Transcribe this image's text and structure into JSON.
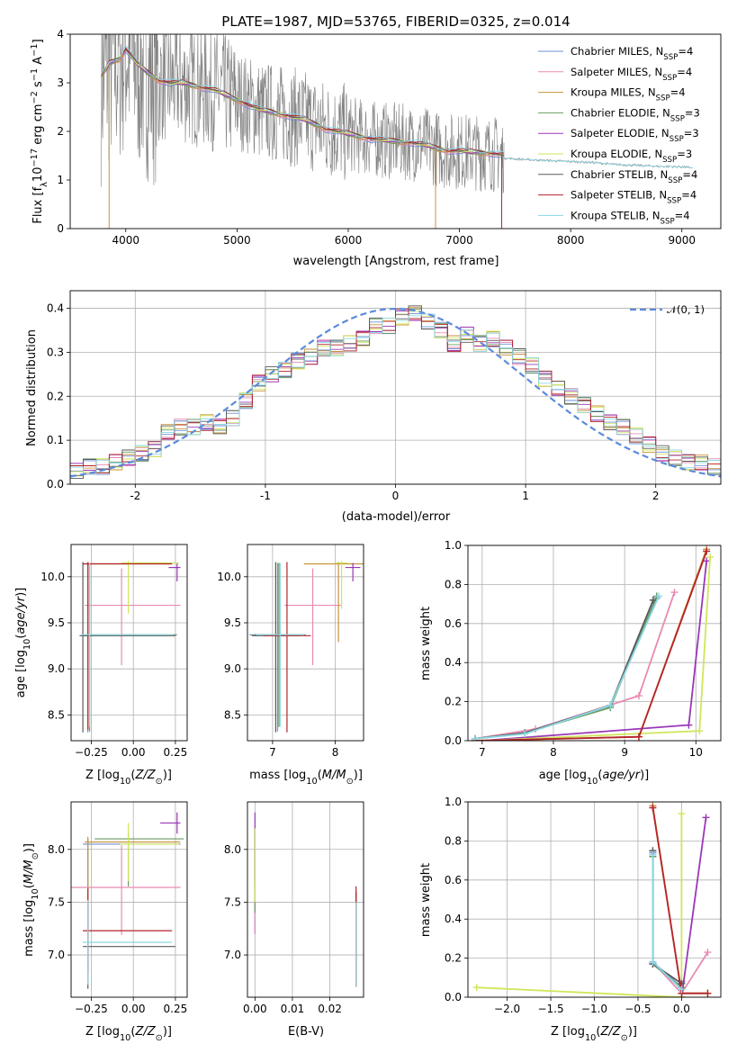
{
  "colors": [
    "#6f8fd6",
    "#e98ab3",
    "#c8923a",
    "#6c9a63",
    "#9a37b7",
    "#cfe65a",
    "#5a5a5a",
    "#b5252b",
    "#8ad7e3"
  ],
  "spectrum_color": "#808080",
  "chart_data": [
    {
      "type": "line",
      "title": "PLATE=1987, MJD=53765, FIBERID=0325, z=0.014",
      "xlabel": "wavelength [Angstrom, rest frame]",
      "ylabel": "Flux [f_λ 10^-17 erg cm^-2 s^-1 A^-1]",
      "xlim": [
        3500,
        9350
      ],
      "ylim": [
        0,
        4
      ],
      "xticks": [
        4000,
        5000,
        6000,
        7000,
        8000,
        9000
      ],
      "yticks": [
        0,
        1,
        2,
        3,
        4
      ],
      "legend_position": "top-right",
      "series": [
        {
          "name": "Chabrier MILES, N_SSP=4"
        },
        {
          "name": "Salpeter MILES, N_SSP=4"
        },
        {
          "name": "Kroupa MILES, N_SSP=4"
        },
        {
          "name": "Chabrier ELODIE, N_SSP=3"
        },
        {
          "name": "Salpeter ELODIE, N_SSP=3"
        },
        {
          "name": "Kroupa ELODIE, N_SSP=3"
        },
        {
          "name": "Chabrier STELIB, N_SSP=4"
        },
        {
          "name": "Salpeter STELIB, N_SSP=4"
        },
        {
          "name": "Kroupa STELIB, N_SSP=4"
        }
      ],
      "model_spectrum": {
        "x": [
          3780,
          3850,
          3950,
          4000,
          4100,
          4200,
          4300,
          4400,
          4500,
          4600,
          4700,
          4800,
          4900,
          5000,
          5100,
          5200,
          5300,
          5400,
          5500,
          5600,
          5700,
          5800,
          5900,
          6000,
          6100,
          6200,
          6300,
          6400,
          6500,
          6600,
          6700,
          6800,
          6900,
          7000,
          7100,
          7200,
          7300,
          7400
        ],
        "y": [
          3.1,
          3.4,
          3.5,
          3.7,
          3.4,
          3.2,
          3.05,
          3.0,
          3.0,
          2.95,
          2.9,
          2.85,
          2.75,
          2.65,
          2.55,
          2.45,
          2.4,
          2.35,
          2.3,
          2.25,
          2.15,
          2.05,
          2.0,
          1.95,
          1.9,
          1.85,
          1.82,
          1.8,
          1.78,
          1.76,
          1.72,
          1.65,
          1.6,
          1.6,
          1.58,
          1.56,
          1.55,
          1.5
        ]
      },
      "observed_spectrum_tail": {
        "x": [
          7400,
          7600,
          7800,
          8000,
          8200,
          8400,
          8600,
          8800,
          9000,
          9100
        ],
        "y": [
          1.45,
          1.42,
          1.4,
          1.38,
          1.36,
          1.32,
          1.3,
          1.28,
          1.27,
          1.25
        ]
      }
    },
    {
      "type": "bar",
      "xlabel": "(data-model)/error",
      "ylabel": "Normed distribution",
      "xlim": [
        -2.5,
        2.5
      ],
      "ylim": [
        0,
        0.44
      ],
      "xticks": [
        -2,
        -1,
        0,
        1,
        2
      ],
      "yticks": [
        0.0,
        0.1,
        0.2,
        0.3,
        0.4
      ],
      "legend": [
        "𝒩(0, 1)"
      ],
      "legend_position": "top-right",
      "reference_curve": "normal pdf, mean 0, sd 1",
      "bins": [
        -2.5,
        -2.4,
        -2.3,
        -2.2,
        -2.1,
        -2.0,
        -1.9,
        -1.8,
        -1.7,
        -1.6,
        -1.5,
        -1.4,
        -1.3,
        -1.2,
        -1.1,
        -1.0,
        -0.9,
        -0.8,
        -0.7,
        -0.6,
        -0.5,
        -0.4,
        -0.3,
        -0.2,
        -0.1,
        0.0,
        0.1,
        0.2,
        0.3,
        0.4,
        0.5,
        0.6,
        0.7,
        0.8,
        0.9,
        1.0,
        1.1,
        1.2,
        1.3,
        1.4,
        1.5,
        1.6,
        1.7,
        1.8,
        1.9,
        2.0,
        2.1,
        2.2,
        2.3,
        2.4,
        2.5
      ],
      "histogram_approx": [
        0.03,
        0.04,
        0.04,
        0.05,
        0.06,
        0.07,
        0.08,
        0.12,
        0.13,
        0.13,
        0.14,
        0.13,
        0.15,
        0.19,
        0.23,
        0.25,
        0.26,
        0.28,
        0.29,
        0.31,
        0.31,
        0.32,
        0.33,
        0.36,
        0.36,
        0.38,
        0.39,
        0.37,
        0.35,
        0.32,
        0.34,
        0.32,
        0.33,
        0.31,
        0.29,
        0.27,
        0.24,
        0.22,
        0.2,
        0.18,
        0.16,
        0.14,
        0.13,
        0.11,
        0.09,
        0.07,
        0.06,
        0.05,
        0.05,
        0.04
      ]
    },
    {
      "type": "scatter",
      "xlabel": "Z [log10(Z/Z_⊙)]",
      "ylabel": "age [log10(age/yr)]",
      "xlim": [
        -0.37,
        0.32
      ],
      "ylim": [
        8.22,
        10.35
      ],
      "xticks": [
        -0.25,
        0.0,
        0.25
      ],
      "xticklabels": [
        "−0.25",
        "0.00",
        "0.25"
      ],
      "yticks": [
        8.5,
        9.0,
        9.5,
        10.0
      ],
      "errorbars": [
        {
          "series": 0,
          "x": -0.27,
          "xerr": 0.03,
          "y": 9.36,
          "yerr": [
            1.05,
            0.8
          ]
        },
        {
          "series": 1,
          "x": -0.07,
          "xerr": [
            0.22,
            0.35
          ],
          "y": 9.69,
          "yerr": [
            0.65,
            0.4
          ]
        },
        {
          "series": 2,
          "x": -0.27,
          "xerr": [
            0.02,
            0.5
          ],
          "y": 10.14,
          "yerr": [
            1.8,
            0.02
          ]
        },
        {
          "series": 3,
          "x": -0.26,
          "xerr": [
            0.03,
            0.52
          ],
          "y": 9.37,
          "yerr": [
            1.05,
            0.78
          ]
        },
        {
          "series": 4,
          "x": 0.26,
          "xerr": [
            0.05,
            0.02
          ],
          "y": 10.1,
          "yerr": [
            0.15,
            0.05
          ]
        },
        {
          "series": 5,
          "x": -0.03,
          "xerr": [
            0.04,
            0.3
          ],
          "y": 10.15,
          "yerr": [
            0.55,
            0.02
          ]
        },
        {
          "series": 6,
          "x": -0.3,
          "xerr": [
            0.02,
            0.55
          ],
          "y": 9.36,
          "yerr": [
            1.05,
            0.8
          ]
        },
        {
          "series": 7,
          "x": -0.27,
          "xerr": [
            0.03,
            0.5
          ],
          "y": 10.14,
          "yerr": [
            1.8,
            0.02
          ]
        },
        {
          "series": 8,
          "x": -0.26,
          "xerr": [
            0.05,
            0.5
          ],
          "y": 9.37,
          "yerr": [
            1.0,
            0.78
          ]
        }
      ]
    },
    {
      "type": "scatter",
      "xlabel": "mass [log10(M/M_⊙)]",
      "ylabel": "",
      "xlim": [
        6.6,
        8.45
      ],
      "ylim": [
        8.22,
        10.35
      ],
      "xticks": [
        7,
        8
      ],
      "yticks": [
        8.5,
        9.0,
        9.5,
        10.0
      ],
      "errorbars": [
        {
          "series": 0,
          "x": 7.08,
          "xerr": 0.45,
          "y": 9.37,
          "yerr": [
            1.05,
            0.78
          ]
        },
        {
          "series": 1,
          "x": 7.64,
          "xerr": 0.45,
          "y": 9.69,
          "yerr": [
            0.65,
            0.4
          ]
        },
        {
          "series": 2,
          "x": 8.05,
          "xerr": 0.55,
          "y": 10.14,
          "yerr": [
            0.85,
            0.02
          ]
        },
        {
          "series": 3,
          "x": 7.1,
          "xerr": 0.4,
          "y": 9.37,
          "yerr": [
            1.0,
            0.78
          ]
        },
        {
          "series": 4,
          "x": 8.28,
          "xerr": 0.12,
          "y": 10.1,
          "yerr": [
            0.15,
            0.05
          ]
        },
        {
          "series": 5,
          "x": 8.1,
          "xerr": 0.1,
          "y": 10.15,
          "yerr": [
            0.5,
            0.02
          ]
        },
        {
          "series": 6,
          "x": 7.05,
          "xerr": 0.38,
          "y": 9.36,
          "yerr": [
            1.05,
            0.8
          ]
        },
        {
          "series": 7,
          "x": 7.23,
          "xerr": 0.38,
          "y": 9.36,
          "yerr": [
            1.05,
            0.8
          ]
        },
        {
          "series": 8,
          "x": 7.12,
          "xerr": 0.38,
          "y": 9.37,
          "yerr": [
            1.0,
            0.78
          ]
        }
      ]
    },
    {
      "type": "line",
      "xlabel": "age [log10(age/yr)]",
      "ylabel": "mass weight",
      "xlim": [
        6.8,
        10.35
      ],
      "ylim": [
        0,
        1
      ],
      "xticks": [
        7,
        8,
        9,
        10
      ],
      "yticks": [
        0.0,
        0.2,
        0.4,
        0.6,
        0.8,
        1.0
      ],
      "series": [
        {
          "x": [
            6.9,
            7.6,
            8.8,
            9.45
          ],
          "y": [
            0.01,
            0.04,
            0.18,
            0.73
          ]
        },
        {
          "x": [
            6.9,
            7.75,
            9.2,
            9.7
          ],
          "y": [
            0.01,
            0.06,
            0.23,
            0.76
          ]
        },
        {
          "x": [
            6.9,
            9.2,
            10.15
          ],
          "y": [
            0.0,
            0.02,
            0.98
          ]
        },
        {
          "x": [
            6.9,
            7.6,
            8.8,
            9.45
          ],
          "y": [
            0.01,
            0.04,
            0.17,
            0.74
          ]
        },
        {
          "x": [
            7.0,
            9.9,
            10.15
          ],
          "y": [
            0.0,
            0.08,
            0.92
          ]
        },
        {
          "x": [
            7.0,
            10.05,
            10.2
          ],
          "y": [
            0.0,
            0.05,
            0.94
          ]
        },
        {
          "x": [
            6.9,
            7.6,
            8.8,
            9.4
          ],
          "y": [
            0.01,
            0.04,
            0.18,
            0.72
          ]
        },
        {
          "x": [
            6.9,
            9.2,
            10.15
          ],
          "y": [
            0.0,
            0.02,
            0.97
          ]
        },
        {
          "x": [
            6.9,
            7.6,
            8.8,
            9.48
          ],
          "y": [
            0.01,
            0.035,
            0.18,
            0.74
          ]
        }
      ]
    },
    {
      "type": "scatter",
      "xlabel": "Z [log10(Z/Z_⊙)]",
      "ylabel": "mass [log10(M/M_⊙)]",
      "xlim": [
        -0.37,
        0.32
      ],
      "ylim": [
        6.6,
        8.45
      ],
      "xticks": [
        -0.25,
        0.0,
        0.25
      ],
      "xticklabels": [
        "−0.25",
        "0.00",
        "0.25"
      ],
      "yticks": [
        7.0,
        7.5,
        8.0
      ],
      "errorbars": [
        {
          "series": 0,
          "x": -0.27,
          "xerr": [
            0.03,
            0.55
          ],
          "y": 8.05,
          "yerr": [
            0.6,
            0.05
          ]
        },
        {
          "series": 1,
          "x": -0.07,
          "xerr": [
            0.3,
            0.35
          ],
          "y": 7.64,
          "yerr": [
            0.45,
            0.4
          ]
        },
        {
          "series": 2,
          "x": -0.27,
          "xerr": [
            0.02,
            0.55
          ],
          "y": 8.07,
          "yerr": [
            0.65,
            0.05
          ]
        },
        {
          "series": 3,
          "x": -0.03,
          "xerr": [
            0.2,
            0.33
          ],
          "y": 8.1,
          "yerr": [
            0.45,
            0.05
          ]
        },
        {
          "series": 4,
          "x": 0.26,
          "xerr": [
            0.1,
            0.02
          ],
          "y": 8.25,
          "yerr": [
            0.1,
            0.1
          ]
        },
        {
          "series": 5,
          "x": -0.03,
          "xerr": [
            0.05,
            0.3
          ],
          "y": 8.05,
          "yerr": [
            0.35,
            0.2
          ]
        },
        {
          "series": 6,
          "x": -0.27,
          "xerr": [
            0.03,
            0.52
          ],
          "y": 7.08,
          "yerr": [
            0.4,
            0.4
          ]
        },
        {
          "series": 7,
          "x": -0.27,
          "xerr": [
            0.03,
            0.5
          ],
          "y": 7.23,
          "yerr": [
            0.4,
            0.4
          ]
        },
        {
          "series": 8,
          "x": -0.27,
          "xerr": [
            0.03,
            0.5
          ],
          "y": 7.12,
          "yerr": [
            0.4,
            0.4
          ]
        }
      ]
    },
    {
      "type": "scatter",
      "xlabel": "E(B-V)",
      "ylabel": "",
      "xlim": [
        -0.002,
        0.029
      ],
      "ylim": [
        6.6,
        8.45
      ],
      "xticks": [
        0.0,
        0.01,
        0.02
      ],
      "xticklabels": [
        "0.00",
        "0.01",
        "0.02"
      ],
      "yticks": [
        7.0,
        7.5,
        8.0
      ],
      "errorbars": [
        {
          "series": 0,
          "x": 0.0,
          "y": 7.6,
          "yerr": [
            0.4,
            0.6
          ]
        },
        {
          "series": 1,
          "x": 0.0,
          "y": 7.6,
          "yerr": [
            0.4,
            0.5
          ]
        },
        {
          "series": 2,
          "x": 0.027,
          "y": 7.3,
          "yerr": [
            0.6,
            0.3
          ]
        },
        {
          "series": 3,
          "x": 0.0,
          "y": 7.7,
          "yerr": [
            0.3,
            0.5
          ]
        },
        {
          "series": 4,
          "x": 0.0,
          "y": 8.0,
          "yerr": [
            0.3,
            0.35
          ]
        },
        {
          "series": 5,
          "x": 0.0,
          "y": 7.8,
          "yerr": [
            0.3,
            0.4
          ]
        },
        {
          "series": 6,
          "x": 0.027,
          "y": 7.1,
          "yerr": [
            0.4,
            0.5
          ]
        },
        {
          "series": 7,
          "x": 0.027,
          "y": 7.3,
          "yerr": [
            0.6,
            0.35
          ]
        },
        {
          "series": 8,
          "x": 0.027,
          "y": 7.1,
          "yerr": [
            0.4,
            0.4
          ]
        }
      ]
    },
    {
      "type": "line",
      "xlabel": "Z [log10(Z/Z_⊙)]",
      "ylabel": "mass weight",
      "xlim": [
        -2.45,
        0.45
      ],
      "ylim": [
        0,
        1
      ],
      "xticks": [
        -2.0,
        -1.5,
        -1.0,
        -0.5,
        0.0
      ],
      "xticklabels": [
        "−2.0",
        "−1.5",
        "−1.0",
        "−0.5",
        "0.0"
      ],
      "yticks": [
        0.0,
        0.2,
        0.4,
        0.6,
        0.8,
        1.0
      ],
      "series": [
        {
          "x": [
            -0.33,
            -0.33,
            0.0
          ],
          "y": [
            0.74,
            0.18,
            0.05
          ]
        },
        {
          "x": [
            -0.33,
            -0.33,
            0.0,
            0.3
          ],
          "y": [
            0.73,
            0.18,
            0.02,
            0.23
          ]
        },
        {
          "x": [
            -0.33,
            0.0,
            0.3
          ],
          "y": [
            0.98,
            0.02,
            0.02
          ]
        },
        {
          "x": [
            -0.33,
            -0.33,
            0.0
          ],
          "y": [
            0.72,
            0.17,
            0.05
          ]
        },
        {
          "x": [
            0.0,
            0.0,
            0.28
          ],
          "y": [
            0.08,
            0.0,
            0.92
          ]
        },
        {
          "x": [
            -2.35,
            0.0,
            0.0
          ],
          "y": [
            0.05,
            0.0,
            0.94
          ]
        },
        {
          "x": [
            -0.33,
            -0.33,
            0.0
          ],
          "y": [
            0.75,
            0.17,
            0.07
          ]
        },
        {
          "x": [
            -0.33,
            0.0,
            0.3
          ],
          "y": [
            0.97,
            0.02,
            0.02
          ]
        },
        {
          "x": [
            -0.33,
            -0.33,
            0.0
          ],
          "y": [
            0.73,
            0.18,
            0.04
          ]
        }
      ]
    }
  ]
}
